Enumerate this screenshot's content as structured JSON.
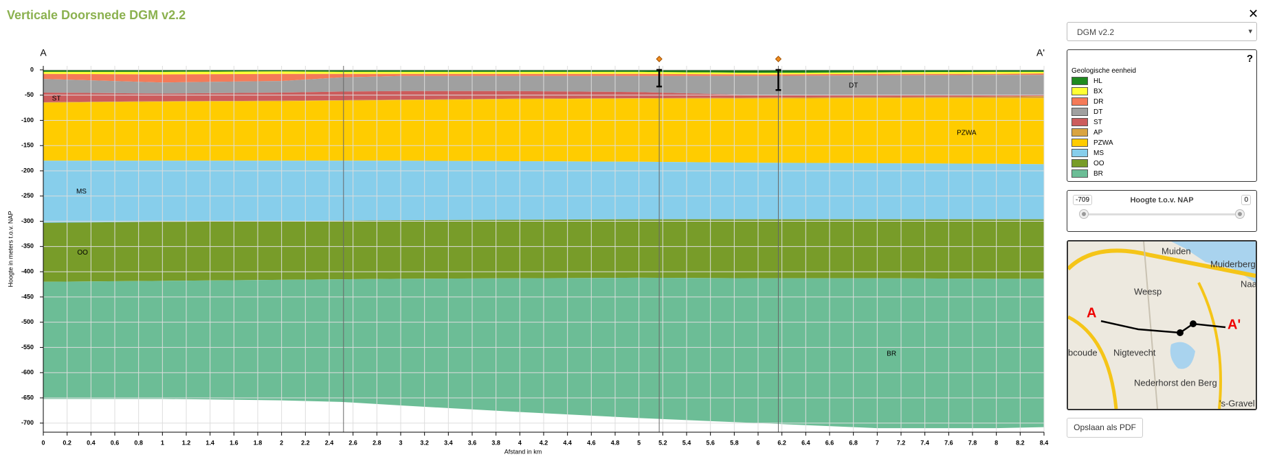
{
  "header": {
    "title": "Verticale Doorsnede DGM v2.2",
    "close": "✕"
  },
  "chart_data": {
    "type": "cross-section",
    "start_label": "A",
    "end_label": "A'",
    "x_label": "Afstand in km",
    "y_label": "Hoogte in meters t.o.v. NAP",
    "xlim": [
      0,
      8.4
    ],
    "ylim": [
      -718,
      8
    ],
    "xticks": [
      0,
      0.2,
      0.4,
      0.6,
      0.8,
      1,
      1.2,
      1.4,
      1.6,
      1.8,
      2,
      2.2,
      2.4,
      2.6,
      2.8,
      3,
      3.2,
      3.4,
      3.6,
      3.8,
      4,
      4.2,
      4.4,
      4.6,
      4.8,
      5,
      5.2,
      5.4,
      5.6,
      5.8,
      6,
      6.2,
      6.4,
      6.6,
      6.8,
      7,
      7.2,
      7.4,
      7.6,
      7.8,
      8,
      8.2,
      8.4
    ],
    "yticks": [
      0,
      -50,
      -100,
      -150,
      -200,
      -250,
      -300,
      -350,
      -400,
      -450,
      -500,
      -550,
      -600,
      -650,
      -700
    ],
    "grid": true,
    "x": [
      0,
      1,
      2,
      2.5,
      3,
      4,
      5,
      6,
      7,
      8,
      8.4
    ],
    "surface": [
      -1,
      -1,
      -1,
      -1,
      -1,
      -1,
      -1,
      -2,
      -1,
      -1,
      -1
    ],
    "series": [
      {
        "name": "HL",
        "color": "#1f8a1f",
        "values": [
          -4,
          -4,
          -3,
          -4,
          -4,
          -4,
          -4,
          -6,
          -5,
          -4,
          -4
        ]
      },
      {
        "name": "BX",
        "color": "#ffff33",
        "values": [
          -8,
          -9,
          -8,
          -8,
          -8,
          -8,
          -8,
          -9,
          -8,
          -8,
          -7
        ]
      },
      {
        "name": "DR",
        "color": "#f47a58",
        "values": [
          -18,
          -25,
          -22,
          -15,
          -12,
          -12,
          -12,
          -12,
          -11,
          -10,
          -10
        ]
      },
      {
        "name": "DT",
        "color": "#a0a0a0",
        "values": [
          -45,
          -47,
          -45,
          -43,
          -42,
          -42,
          -44,
          -50,
          -50,
          -50,
          -49
        ]
      },
      {
        "name": "ST",
        "color": "#cc5c5c",
        "values": [
          -64,
          -62,
          -61,
          -60,
          -59,
          -57,
          -56,
          -55,
          -54,
          -53,
          -52
        ]
      },
      {
        "name": "AP",
        "color": "#d9a441",
        "values": [
          -65,
          -63,
          -62,
          -61,
          -60,
          -58,
          -57,
          -57,
          -56,
          -56,
          -56
        ]
      },
      {
        "name": "PZWA",
        "color": "#ffcc00",
        "values": [
          -180,
          -180,
          -180,
          -180,
          -180,
          -181,
          -182,
          -184,
          -185,
          -186,
          -187
        ]
      },
      {
        "name": "MS",
        "color": "#87ceeb",
        "values": [
          -303,
          -301,
          -300,
          -299,
          -298,
          -297,
          -296,
          -296,
          -296,
          -296,
          -296
        ]
      },
      {
        "name": "OO",
        "color": "#789c29",
        "values": [
          -420,
          -418,
          -416,
          -415,
          -414,
          -413,
          -412,
          -413,
          -413,
          -414,
          -414
        ]
      },
      {
        "name": "BR",
        "color": "#6cbd96",
        "values": [
          -652,
          -652,
          -655,
          -658,
          -665,
          -678,
          -690,
          -700,
          -710,
          -710,
          -708
        ]
      }
    ],
    "verticals": [
      2.52,
      5.17,
      6.17
    ],
    "boreholes": [
      {
        "x": 5.17,
        "depth": -33
      },
      {
        "x": 6.17,
        "depth": -40
      }
    ],
    "annotations": [
      {
        "text": "ST",
        "x": 0.11,
        "y": -57
      },
      {
        "text": "DT",
        "x": 6.8,
        "y": -31
      },
      {
        "text": "PZWA",
        "x": 7.75,
        "y": -125
      },
      {
        "text": "MS",
        "x": 0.32,
        "y": -241
      },
      {
        "text": "OO",
        "x": 0.33,
        "y": -362
      },
      {
        "text": "BR",
        "x": 7.12,
        "y": -563
      }
    ]
  },
  "sidebar": {
    "model_select": "DGM v2.2",
    "help": "?",
    "legend_title": "Geologische eenheid",
    "slider": {
      "min": -709,
      "label": "Hoogte t.o.v. NAP",
      "max": 0
    },
    "button": "Opslaan als PDF"
  },
  "map": {
    "start": "A",
    "end": "A'",
    "labels": [
      "Muiden",
      "Muiderberg",
      "Naa",
      "Weesp",
      "bcoude",
      "Nigtevecht",
      "Nederhorst den Berg",
      "'s-Gravel"
    ]
  }
}
